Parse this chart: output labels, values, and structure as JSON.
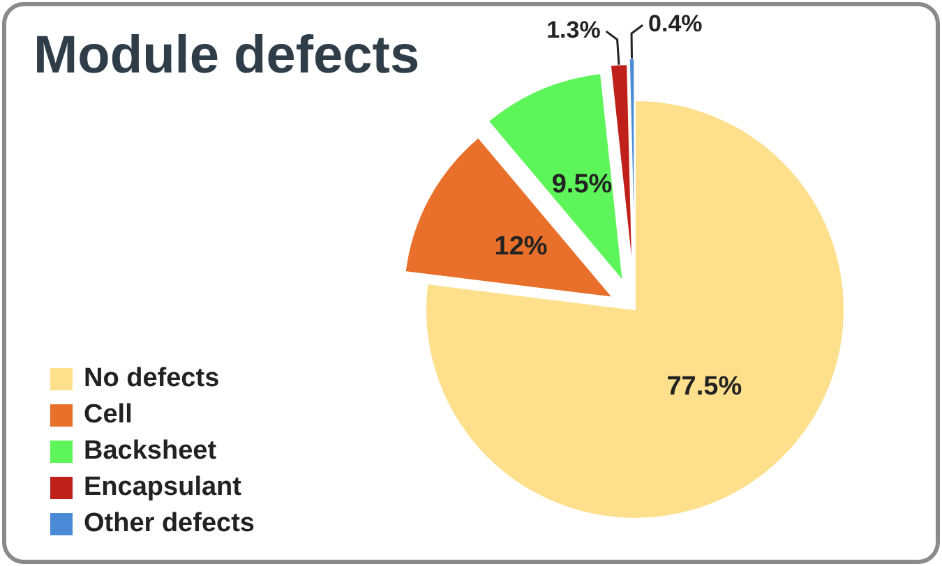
{
  "chart_data": {
    "type": "pie",
    "title": "Module defects",
    "categories": [
      "No defects",
      "Cell",
      "Backsheet",
      "Encapsulant",
      "Other defects"
    ],
    "values": [
      77.5,
      12,
      9.5,
      1.3,
      0.4
    ],
    "colors": [
      "#fddf8c",
      "#e8702a",
      "#5ef55a",
      "#c0201a",
      "#4a8ad6"
    ],
    "value_labels": [
      "77.5%",
      "12%",
      "9.5%",
      "1.3%",
      "0.4%"
    ],
    "legend": "bottom left"
  }
}
